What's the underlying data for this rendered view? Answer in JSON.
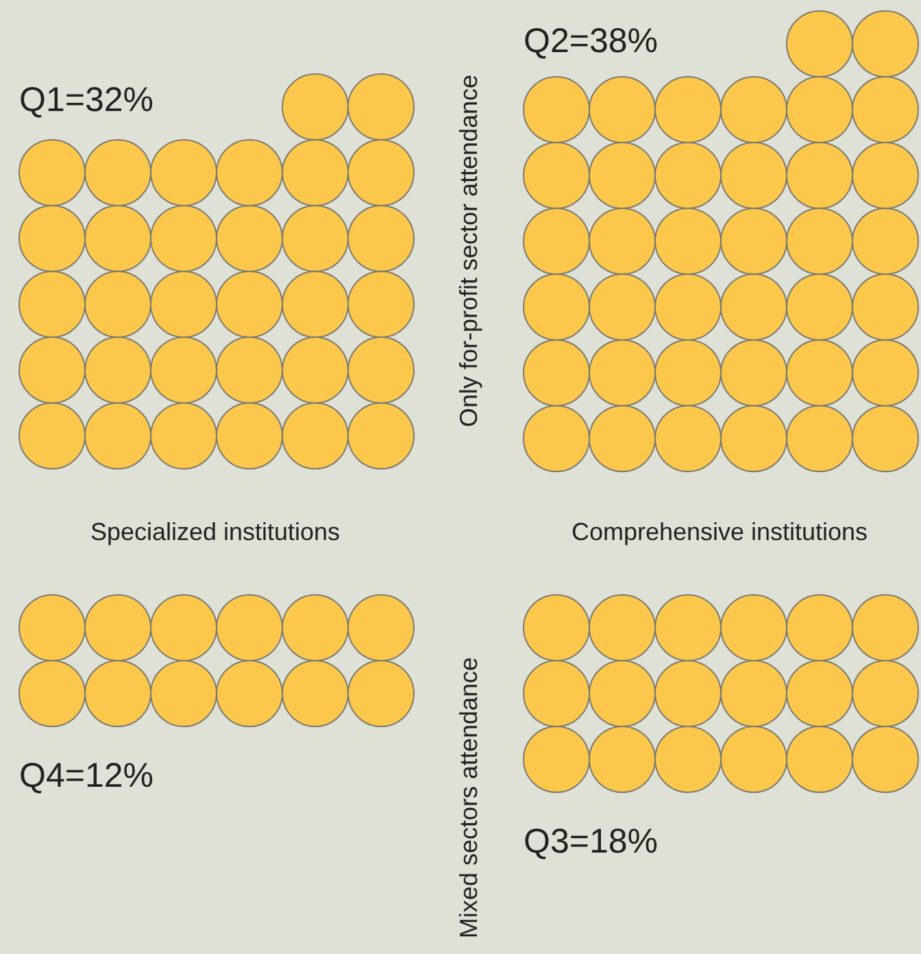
{
  "chart_data": {
    "type": "other",
    "categories": [
      "Q1",
      "Q2",
      "Q3",
      "Q4"
    ],
    "values": [
      32,
      38,
      18,
      12
    ],
    "value_labels": [
      "=32%",
      "=38%",
      "=18%",
      "=12%"
    ],
    "color": "#fcc84b",
    "annotations": [
      "Only for-profit sector attendance",
      "Mixed sectors attendance",
      "Specialized institutions",
      "Comprehensive institutions"
    ]
  }
}
